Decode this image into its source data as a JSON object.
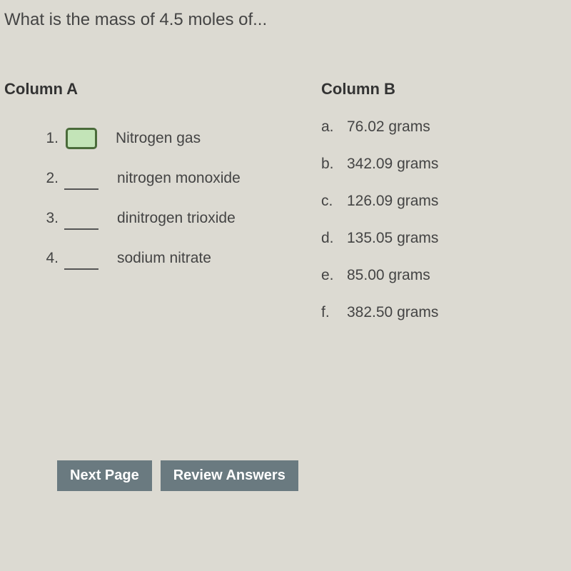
{
  "question": "What is the mass of 4.5 moles of...",
  "columnA": {
    "header": "Column A",
    "items": [
      {
        "num": "1.",
        "label": "Nitrogen gas",
        "active": true
      },
      {
        "num": "2.",
        "label": "nitrogen monoxide",
        "active": false
      },
      {
        "num": "3.",
        "label": "dinitrogen trioxide",
        "active": false
      },
      {
        "num": "4.",
        "label": "sodium nitrate",
        "active": false
      }
    ]
  },
  "columnB": {
    "header": "Column B",
    "items": [
      {
        "letter": "a.",
        "value": "76.02 grams"
      },
      {
        "letter": "b.",
        "value": "342.09 grams"
      },
      {
        "letter": "c.",
        "value": "126.09 grams"
      },
      {
        "letter": "d.",
        "value": "135.05 grams"
      },
      {
        "letter": "e.",
        "value": "85.00 grams"
      },
      {
        "letter": "f.",
        "value": "382.50 grams"
      }
    ]
  },
  "buttons": {
    "next": "Next Page",
    "review": "Review Answers"
  },
  "colors": {
    "background": "#dcdad2",
    "text": "#3a3a3a",
    "buttonBg": "#6a7a80",
    "buttonText": "#ffffff",
    "activeBoxBg": "#c3e4b8",
    "activeBoxBorder": "#4a6b3a"
  }
}
